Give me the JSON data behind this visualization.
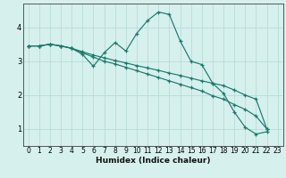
{
  "title": "",
  "xlabel": "Humidex (Indice chaleur)",
  "background_color": "#d6f0ee",
  "grid_color": "#b8dcd8",
  "line_color": "#1a7a6a",
  "xlim": [
    -0.5,
    23.5
  ],
  "ylim": [
    0.5,
    4.7
  ],
  "yticks": [
    1,
    2,
    3,
    4
  ],
  "xticks": [
    0,
    1,
    2,
    3,
    4,
    5,
    6,
    7,
    8,
    9,
    10,
    11,
    12,
    13,
    14,
    15,
    16,
    17,
    18,
    19,
    20,
    21,
    22,
    23
  ],
  "series": [
    {
      "x": [
        0,
        1,
        2,
        3,
        4,
        5,
        6,
        7,
        8,
        9,
        10,
        11,
        12,
        13,
        14,
        15,
        16,
        17,
        18,
        19,
        20,
        21,
        22
      ],
      "y": [
        3.45,
        3.45,
        3.5,
        3.45,
        3.38,
        3.2,
        2.85,
        3.25,
        3.55,
        3.3,
        3.82,
        4.2,
        4.45,
        4.38,
        3.6,
        3.0,
        2.9,
        2.35,
        2.05,
        1.5,
        1.05,
        0.85,
        0.92
      ]
    },
    {
      "x": [
        0,
        1,
        2,
        3,
        4,
        5,
        6,
        7,
        8,
        9,
        10,
        11,
        12,
        13,
        14,
        15,
        16,
        17,
        18,
        19,
        20,
        21,
        22
      ],
      "y": [
        3.45,
        3.45,
        3.5,
        3.45,
        3.38,
        3.28,
        3.18,
        3.1,
        3.02,
        2.95,
        2.87,
        2.8,
        2.73,
        2.65,
        2.58,
        2.5,
        2.42,
        2.35,
        2.28,
        2.15,
        2.0,
        1.88,
        1.0
      ]
    },
    {
      "x": [
        0,
        1,
        2,
        3,
        4,
        5,
        6,
        7,
        8,
        9,
        10,
        11,
        12,
        13,
        14,
        15,
        16,
        17,
        18,
        19,
        20,
        21,
        22
      ],
      "y": [
        3.45,
        3.45,
        3.5,
        3.45,
        3.38,
        3.25,
        3.12,
        3.0,
        2.92,
        2.82,
        2.72,
        2.62,
        2.52,
        2.42,
        2.32,
        2.22,
        2.12,
        1.98,
        1.88,
        1.72,
        1.58,
        1.38,
        1.0
      ]
    }
  ]
}
